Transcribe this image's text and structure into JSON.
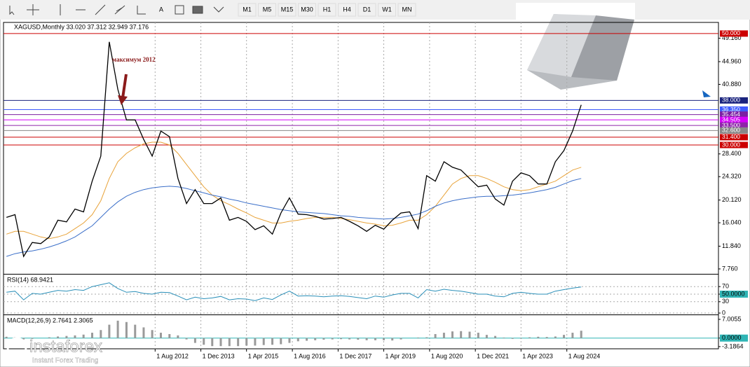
{
  "toolbar": {
    "timeframes": [
      "M1",
      "M5",
      "M15",
      "M30",
      "H1",
      "H4",
      "D1",
      "W1",
      "MN"
    ]
  },
  "watermark": {
    "brand": "instaforex",
    "tagline": "Instant Forex Trading"
  },
  "chart_data": [
    {
      "type": "line",
      "title": "XAGUSD,Monthly  33.020 37.312 32.949 37.176",
      "annotation": "максимум 2012",
      "x": [
        "1 Apr 2008",
        "1 Jul 2008",
        "1 Oct 2008",
        "1 Jan 2009",
        "1 Apr 2009",
        "1 Jul 2009",
        "1 Oct 2009",
        "1 Jan 2010",
        "1 Apr 2010",
        "1 Jul 2010",
        "1 Oct 2010",
        "1 Jan 2011",
        "1 Apr 2011",
        "1 Jul 2011",
        "1 Oct 2011",
        "1 Jan 2012",
        "1 Apr 2012",
        "1 Jul 2012",
        "1 Oct 2012",
        "1 Jan 2013",
        "1 Apr 2013",
        "1 Jul 2013",
        "1 Oct 2013",
        "1 Jan 2014",
        "1 Apr 2014",
        "1 Jul 2014",
        "1 Oct 2014",
        "1 Jan 2015",
        "1 Apr 2015",
        "1 Jul 2015",
        "1 Oct 2015",
        "1 Jan 2016",
        "1 Apr 2016",
        "1 Jul 2016",
        "1 Oct 2016",
        "1 Jan 2017",
        "1 Apr 2017",
        "1 Jul 2017",
        "1 Oct 2017",
        "1 Jan 2018",
        "1 Apr 2018",
        "1 Jul 2018",
        "1 Oct 2018",
        "1 Jan 2019",
        "1 Apr 2019",
        "1 Jul 2019",
        "1 Oct 2019",
        "1 Jan 2020",
        "1 Apr 2020",
        "1 Jul 2020",
        "1 Oct 2020",
        "1 Jan 2021",
        "1 Apr 2021",
        "1 Jul 2021",
        "1 Oct 2021",
        "1 Jan 2022",
        "1 Apr 2022",
        "1 Jul 2022",
        "1 Oct 2022",
        "1 Jan 2023",
        "1 Apr 2023",
        "1 Jul 2023",
        "1 Oct 2023",
        "1 Jan 2024",
        "1 Apr 2024",
        "1 Jul 2024",
        "1 Oct 2024",
        "1 Jan 2025"
      ],
      "xlim": [
        "1 Mar 2008",
        "1 Jan 2029"
      ],
      "xticks": [
        "1 Aug 2012",
        "1 Dec 2013",
        "1 Apr 2015",
        "1 Aug 2016",
        "1 Dec 2017",
        "1 Apr 2019",
        "1 Aug 2020",
        "1 Dec 2021",
        "1 Apr 2023",
        "1 Aug 2024"
      ],
      "series": [
        {
          "color": "#000000",
          "values": [
            17,
            17.5,
            10,
            12.5,
            12.3,
            13.5,
            16.5,
            16.2,
            18.5,
            18,
            23.5,
            28,
            48.5,
            40,
            34.5,
            34.5,
            31,
            28,
            32.5,
            31.5,
            24,
            19.5,
            22,
            19.5,
            19.5,
            20.5,
            16.5,
            17,
            16.3,
            14.8,
            15.5,
            14,
            17.8,
            20.5,
            17.6,
            17.5,
            17.2,
            16.7,
            16.8,
            17,
            16.3,
            15.5,
            14.5,
            15.6,
            14.9,
            16.5,
            17.8,
            18,
            15,
            24.5,
            23.5,
            27,
            26,
            25.5,
            24,
            22.5,
            22.8,
            20.3,
            19.2,
            23.5,
            25,
            24.5,
            23,
            23,
            27,
            29,
            32.5,
            37.2
          ]
        },
        {
          "color": "#e8a33a",
          "values": [
            14,
            14.5,
            14.5,
            14,
            13.5,
            13.2,
            13.5,
            14,
            15,
            16,
            17.5,
            20,
            24,
            27,
            28.5,
            29.5,
            30.2,
            30.5,
            30.5,
            30,
            28.5,
            26.5,
            24.5,
            22.5,
            21,
            20,
            19.3,
            18.5,
            17.8,
            17,
            16.5,
            16,
            16,
            16.3,
            16.5,
            16.8,
            17,
            17,
            17,
            16.8,
            16.6,
            16.3,
            16,
            15.8,
            15.5,
            15.6,
            16,
            16.5,
            16.5,
            17.5,
            19,
            21,
            23,
            24,
            24.5,
            24.5,
            24,
            23.3,
            22.5,
            22,
            21.8,
            22,
            22.5,
            23,
            23.5,
            24.5,
            25.5,
            26
          ]
        },
        {
          "color": "#3b6fc9",
          "values": [
            10,
            10.5,
            10.8,
            11,
            11.3,
            11.7,
            12.2,
            12.8,
            13.5,
            14.5,
            15.5,
            17,
            18.5,
            19.8,
            20.8,
            21.5,
            22,
            22.3,
            22.5,
            22.6,
            22.5,
            22.2,
            21.8,
            21.4,
            21,
            20.7,
            20.3,
            20,
            19.6,
            19.3,
            19,
            18.7,
            18.4,
            18.2,
            18,
            17.9,
            17.8,
            17.7,
            17.5,
            17.3,
            17.2,
            17,
            16.9,
            16.8,
            16.7,
            16.8,
            17,
            17.3,
            17.6,
            18.2,
            19,
            19.6,
            20,
            20.3,
            20.5,
            20.7,
            20.8,
            20.8,
            20.9,
            21,
            21.2,
            21.4,
            21.7,
            22,
            22.4,
            23,
            23.6,
            24
          ]
        }
      ],
      "ylim": [
        7.0,
        52.0
      ],
      "yticks": [
        {
          "value": 49.16,
          "label": "49.160"
        },
        {
          "value": 44.96,
          "label": "44.960"
        },
        {
          "value": 40.88,
          "label": "40.880"
        },
        {
          "value": 28.4,
          "label": "28.400"
        },
        {
          "value": 24.32,
          "label": "24.320"
        },
        {
          "value": 20.12,
          "label": "20.120"
        },
        {
          "value": 16.04,
          "label": "16.040"
        },
        {
          "value": 11.84,
          "label": "11.840"
        },
        {
          "value": 7.76,
          "label": "7.760"
        }
      ],
      "levels": [
        {
          "value": 50,
          "label": "50.000",
          "color": "#cc0000"
        },
        {
          "value": 38,
          "label": "38.000",
          "color": "#1a237e"
        },
        {
          "value": 36.35,
          "label": "36.350",
          "color": "#3d5afe"
        },
        {
          "value": 35.454,
          "label": "35.454",
          "color": "#7b1fa2"
        },
        {
          "value": 34.505,
          "label": "34.505",
          "color": "#d500f9"
        },
        {
          "value": 33.5,
          "label": "33.500",
          "color": "#8e24aa"
        },
        {
          "value": 32.6,
          "label": "32.600",
          "color": "#888888"
        },
        {
          "value": 31.4,
          "label": "31.400",
          "color": "#cc0000"
        },
        {
          "value": 30,
          "label": "30.000",
          "color": "#cc0000"
        }
      ]
    },
    {
      "type": "line",
      "title": "RSI(14) 68.9421",
      "color": "#2a8fb8",
      "values": [
        55,
        58,
        35,
        52,
        50,
        55,
        60,
        58,
        62,
        60,
        70,
        75,
        80,
        65,
        55,
        57,
        52,
        50,
        55,
        54,
        45,
        35,
        42,
        38,
        40,
        44,
        35,
        38,
        37,
        33,
        40,
        36,
        48,
        58,
        45,
        46,
        45,
        43,
        45,
        46,
        44,
        41,
        38,
        45,
        42,
        48,
        52,
        52,
        40,
        62,
        58,
        63,
        60,
        58,
        54,
        50,
        50,
        45,
        43,
        52,
        55,
        52,
        50,
        50,
        58,
        62,
        66,
        69
      ],
      "ylim": [
        0,
        100
      ],
      "yticks": [
        70,
        {
          "value": 50,
          "label": "50.0000"
        },
        30,
        0
      ]
    },
    {
      "type": "bar",
      "title": "MACD(12,26,9) 2.7641 2.3065",
      "color": "#9a9a9a",
      "values": [
        0.5,
        0.3,
        -0.5,
        -0.3,
        0,
        0.3,
        0.6,
        0.8,
        1,
        1.3,
        2,
        3,
        5,
        6.5,
        6,
        5,
        4,
        3,
        2,
        1.5,
        1,
        -0.5,
        -1.8,
        -2.5,
        -3,
        -3,
        -3,
        -3,
        -2.8,
        -2.8,
        -2.6,
        -2.5,
        -2.3,
        -1.8,
        -1.2,
        -1,
        -0.8,
        -0.6,
        -0.5,
        -0.4,
        -0.5,
        -0.6,
        -0.8,
        -0.8,
        -0.8,
        -0.9,
        -0.5,
        0,
        0.2,
        0.3,
        1.5,
        2,
        2.5,
        2.6,
        2.4,
        2,
        1.2,
        0.8,
        0.2,
        -0.3,
        -0.2,
        0.3,
        0.5,
        0.4,
        0.6,
        1.2,
        2,
        2.76
      ],
      "ylim": [
        -4.0,
        8.3
      ],
      "yticks": [
        7.0055,
        {
          "value": 0,
          "label": "0.0000"
        },
        -3.1864
      ]
    }
  ]
}
